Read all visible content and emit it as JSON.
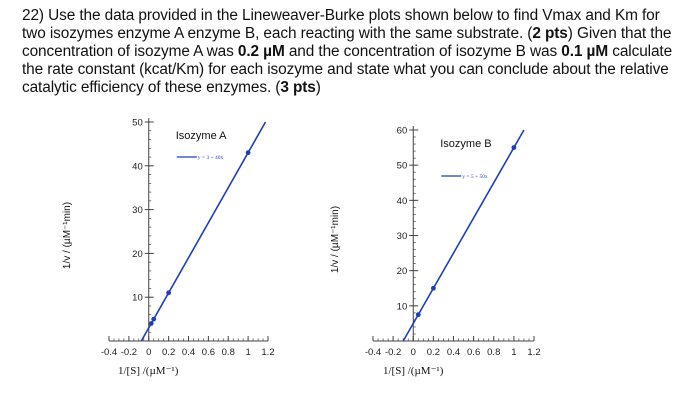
{
  "question": {
    "s1": "22) Use the data provided in the Lineweaver-Burke plots shown below to find Vmax and Km for two isozymes enzyme A enzyme B, each reacting with the same substrate. (",
    "b1": "2 pts",
    "s2": ") Given that the concentration of isozyme A was ",
    "b2": "0.2 µM",
    "s3": " and the concentration of isozyme B was ",
    "b3": "0.1 µM",
    "s4": " calculate the rate constant (kcat/Km) for each isozyme and state what you can conclude about the relative catalytic efficiency of these enzymes. (",
    "b4": "3 pts",
    "s5": ")"
  },
  "chart_data": [
    {
      "type": "line",
      "title": "Isozyme A",
      "legend": "y = 3 + 40x",
      "xlabel": "1/[S] /(µM⁻¹)",
      "ylabel": "1/v / (µM⁻¹min)",
      "xlim": [
        -0.4,
        1.2
      ],
      "ylim": [
        0,
        50
      ],
      "xticks": [
        -0.4,
        -0.2,
        0,
        0.2,
        0.4,
        0.6,
        0.8,
        1,
        1.2
      ],
      "xtick_labels": [
        "-0.4",
        "-0.2",
        "0",
        "0.2",
        "0.4",
        "0.6",
        "0.8",
        "1",
        "1.2"
      ],
      "yticks": [
        10,
        20,
        30,
        40,
        50
      ],
      "ytick_labels": [
        "10",
        "20",
        "30",
        "40",
        "50"
      ],
      "fit": {
        "intercept": 3,
        "slope": 40
      },
      "points": [
        {
          "x": 0.025,
          "y": 4
        },
        {
          "x": 0.05,
          "y": 5
        },
        {
          "x": 0.2,
          "y": 11
        },
        {
          "x": 1.0,
          "y": 43
        }
      ],
      "color": "#1f3fb8"
    },
    {
      "type": "line",
      "title": "Isozyme B",
      "legend": "y = 5 + 50x",
      "xlabel": "1/[S] /(µM⁻¹)",
      "ylabel": "1/v / (µM⁻¹min)",
      "xlim": [
        -0.4,
        1.2
      ],
      "ylim": [
        0,
        60
      ],
      "xticks": [
        -0.4,
        -0.2,
        0,
        0.2,
        0.4,
        0.6,
        0.8,
        1,
        1.2
      ],
      "xtick_labels": [
        "-0.4",
        "-0.2",
        "0",
        "0.2",
        "0.4",
        "0.6",
        "0.8",
        "1",
        "1.2"
      ],
      "yticks": [
        10,
        20,
        30,
        40,
        50,
        60
      ],
      "ytick_labels": [
        "10",
        "20",
        "30",
        "40",
        "50",
        "60"
      ],
      "fit": {
        "intercept": 5,
        "slope": 50
      },
      "points": [
        {
          "x": 0.05,
          "y": 7.5
        },
        {
          "x": 0.2,
          "y": 15
        },
        {
          "x": 1.0,
          "y": 55
        }
      ],
      "color": "#1f3fb8"
    }
  ]
}
